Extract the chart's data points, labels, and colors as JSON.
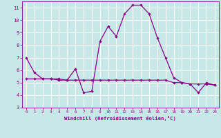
{
  "xlabel": "Windchill (Refroidissement éolien,°C)",
  "bg_color": "#c8e8e8",
  "grid_color": "#ffffff",
  "line_color": "#880088",
  "line1_x": [
    0,
    1,
    2,
    3,
    4,
    5,
    6,
    7,
    8,
    9,
    10,
    11,
    12,
    13,
    14,
    15,
    16,
    17,
    18,
    19,
    20,
    21,
    22,
    23
  ],
  "line1_y": [
    7.0,
    5.8,
    5.3,
    5.3,
    5.2,
    5.2,
    6.1,
    4.2,
    4.3,
    8.3,
    9.5,
    8.7,
    10.5,
    11.2,
    11.2,
    10.5,
    8.6,
    7.0,
    5.4,
    5.0,
    4.9,
    4.2,
    5.0,
    4.8
  ],
  "line2_x": [
    0,
    1,
    2,
    3,
    4,
    5,
    6,
    7,
    8,
    9,
    10,
    11,
    12,
    13,
    14,
    15,
    16,
    17,
    18,
    19,
    20,
    21,
    22,
    23
  ],
  "line2_y": [
    5.3,
    5.3,
    5.3,
    5.3,
    5.3,
    5.2,
    5.2,
    5.2,
    5.2,
    5.2,
    5.2,
    5.2,
    5.2,
    5.2,
    5.2,
    5.2,
    5.2,
    5.2,
    5.0,
    5.0,
    4.9,
    4.9,
    4.9,
    4.8
  ],
  "ylim": [
    3,
    11.5
  ],
  "yticks": [
    3,
    4,
    5,
    6,
    7,
    8,
    9,
    10,
    11
  ],
  "xlim": [
    -0.5,
    23.5
  ],
  "xticks": [
    0,
    1,
    2,
    3,
    4,
    5,
    6,
    7,
    8,
    9,
    10,
    11,
    12,
    13,
    14,
    15,
    16,
    17,
    18,
    19,
    20,
    21,
    22,
    23
  ],
  "xlabel_color": "#880088",
  "tick_label_color": "#880088",
  "spine_color": "#880088",
  "axis_bg_color": "#c8e8e8"
}
